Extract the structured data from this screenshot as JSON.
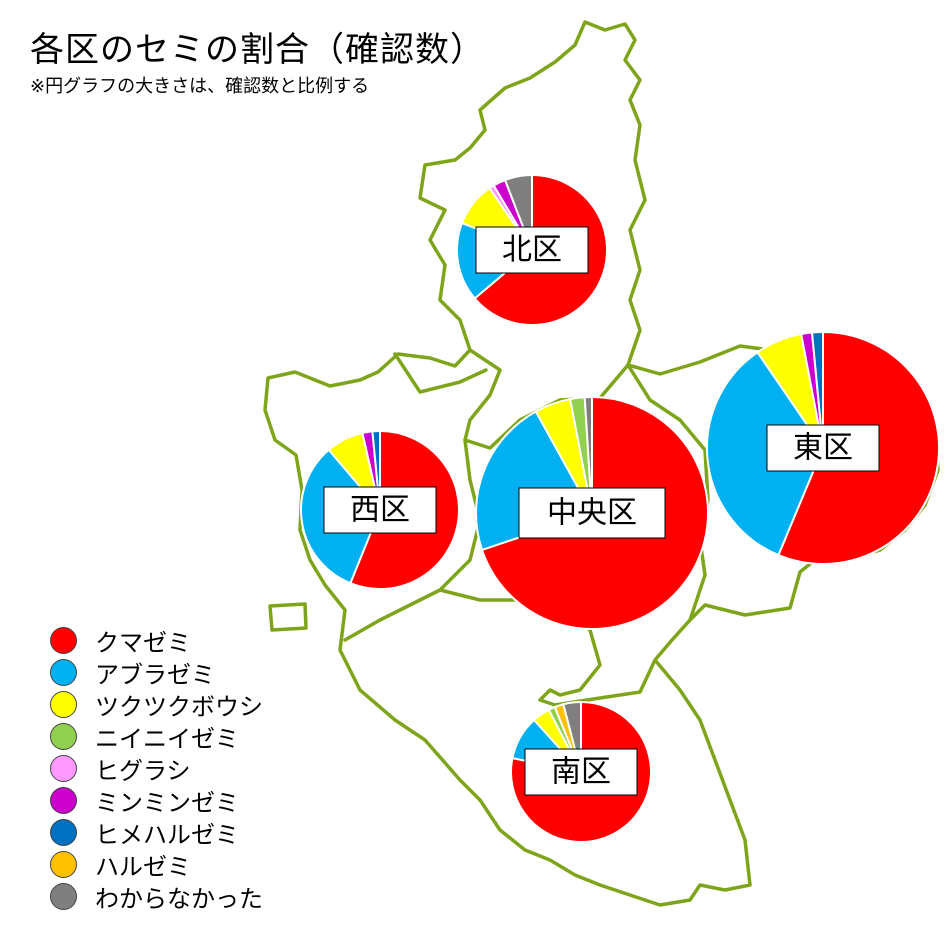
{
  "title": "各区のセミの割合（確認数）",
  "subtitle": "※円グラフの大きさは、確認数と比例する",
  "chart_data": {
    "type": "pie",
    "title": "各区のセミの割合（確認数）",
    "note": "※円グラフの大きさは、確認数と比例する",
    "species": [
      {
        "name": "クマゼミ",
        "color": "#ff0000"
      },
      {
        "name": "アブラゼミ",
        "color": "#00b0f0"
      },
      {
        "name": "ツクツクボウシ",
        "color": "#ffff00"
      },
      {
        "name": "ニイニイゼミ",
        "color": "#92d050"
      },
      {
        "name": "ヒグラシ",
        "color": "#ff99ff"
      },
      {
        "name": "ミンミンゼミ",
        "color": "#cc00cc"
      },
      {
        "name": "ヒメハルゼミ",
        "color": "#0070c0"
      },
      {
        "name": "ハルゼミ",
        "color": "#ffc000"
      },
      {
        "name": "わからなかった",
        "color": "#7f7f7f"
      }
    ],
    "districts": [
      {
        "name": "北区",
        "shares": [
          60.0,
          16.0,
          9.0,
          0.0,
          1.0,
          2.5,
          0.0,
          0.0,
          5.5
        ]
      },
      {
        "name": "西区",
        "shares": [
          55.0,
          32.0,
          7.5,
          0.0,
          0.0,
          2.0,
          1.5,
          0.0,
          0.0
        ]
      },
      {
        "name": "中央区",
        "shares": [
          69.5,
          22.0,
          5.0,
          2.0,
          0.0,
          0.0,
          0.0,
          0.0,
          1.0
        ]
      },
      {
        "name": "東区",
        "shares": [
          56.0,
          34.0,
          6.5,
          0.0,
          0.0,
          1.5,
          1.5,
          0.0,
          0.0
        ]
      },
      {
        "name": "南区",
        "shares": [
          77.0,
          10.0,
          4.0,
          1.5,
          0.0,
          0.0,
          0.0,
          2.0,
          4.0
        ]
      }
    ]
  },
  "colors": {
    "map_outline": "#7ea51a",
    "slice_border": "#ffffff"
  }
}
